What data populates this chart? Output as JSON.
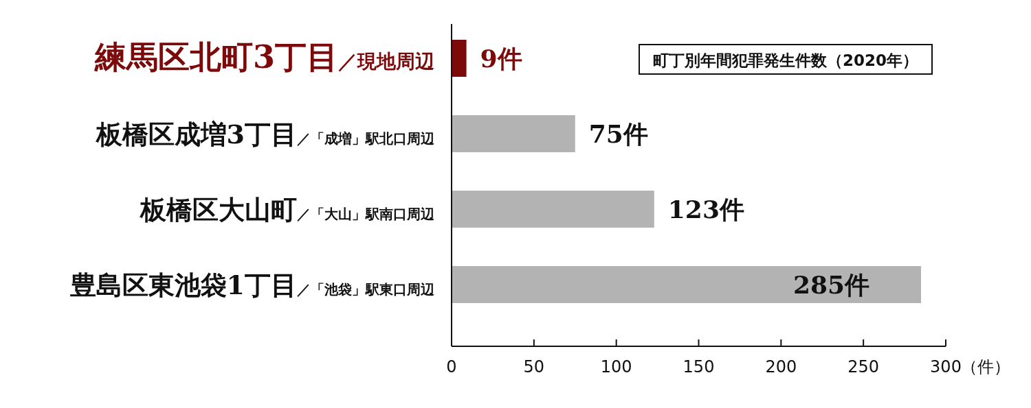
{
  "chart_data": {
    "type": "bar",
    "orientation": "horizontal",
    "title": "町丁別年間犯罪発生件数（2020年）",
    "xlabel": "（件）",
    "categories": [
      "練馬区北町3丁目／現地周辺",
      "板橋区成増3丁目／「成増」駅北口周辺",
      "板橋区大山町／「大山」駅南口周辺",
      "豊島区東池袋1丁目／「池袋」駅東口周辺"
    ],
    "values": [
      9,
      75,
      123,
      285
    ],
    "colors": [
      "#7d0a0a",
      "#b3b3b3",
      "#b3b3b3",
      "#b3b3b3"
    ],
    "value_labels": [
      "9件",
      "75件",
      "123件",
      "285件"
    ],
    "xlim": [
      0,
      300
    ],
    "xticks": [
      0,
      50,
      100,
      150,
      200,
      250,
      300
    ],
    "grid": false
  }
}
